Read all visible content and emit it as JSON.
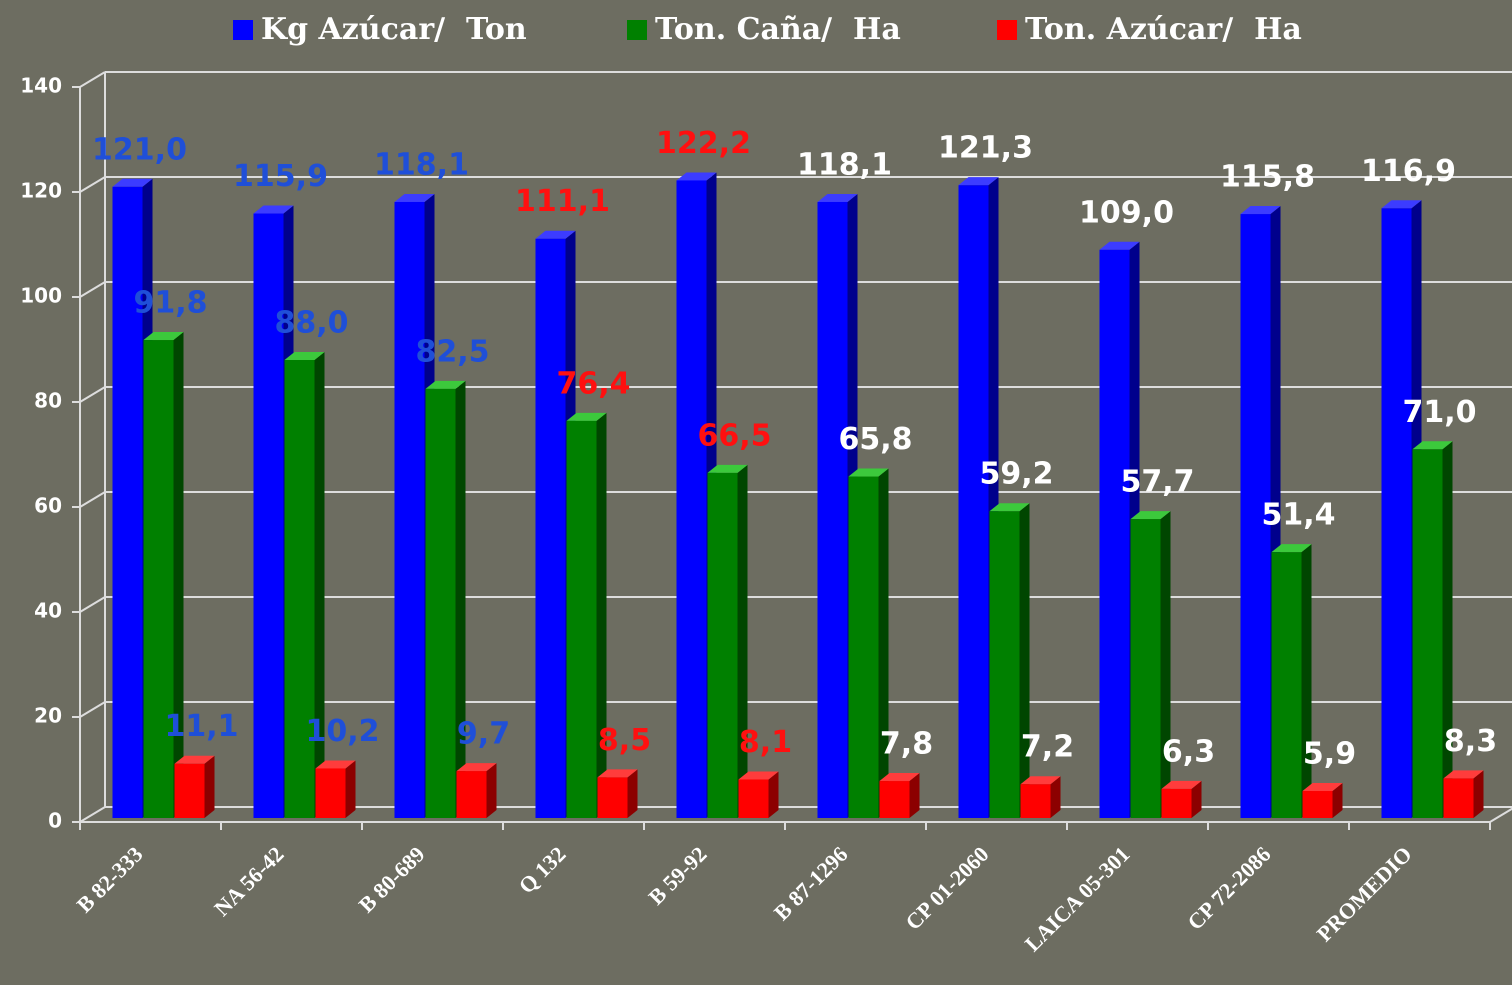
{
  "chart_data": {
    "type": "bar3d",
    "categories": [
      "B 82-333",
      "NA 56-42",
      "B 80-689",
      "Q 132",
      "B 59-92",
      "B 87-1296",
      "CP 01-2060",
      "LAICA 05-301",
      "CP 72-2086",
      "PROMEDIO"
    ],
    "series": [
      {
        "name": "Kg Azúcar/  Ton",
        "color": "#0000ff",
        "values": [
          121.0,
          115.9,
          118.1,
          111.1,
          122.2,
          118.1,
          121.3,
          109.0,
          115.8,
          116.9
        ],
        "value_labels": [
          "121,0",
          "115,9",
          "118,1",
          "111,1",
          "122,2",
          "118,1",
          "121,3",
          "109,0",
          "115,8",
          "116,9"
        ],
        "label_colors": [
          "#1f4fd8",
          "#1f4fd8",
          "#1f4fd8",
          "#ff1010",
          "#ff1010",
          "#ffffff",
          "#ffffff",
          "#ffffff",
          "#ffffff",
          "#ffffff"
        ]
      },
      {
        "name": "Ton. Caña/  Ha",
        "color": "#008000",
        "values": [
          91.8,
          88.0,
          82.5,
          76.4,
          66.5,
          65.8,
          59.2,
          57.7,
          51.4,
          71.0
        ],
        "value_labels": [
          "91,8",
          "88,0",
          "82,5",
          "76,4",
          "66,5",
          "65,8",
          "59,2",
          "57,7",
          "51,4",
          "71,0"
        ],
        "label_colors": [
          "#1f4fd8",
          "#1f4fd8",
          "#1f4fd8",
          "#ff1010",
          "#ff1010",
          "#ffffff",
          "#ffffff",
          "#ffffff",
          "#ffffff",
          "#ffffff"
        ]
      },
      {
        "name": "Ton. Azúcar/  Ha",
        "color": "#ff0000",
        "values": [
          11.1,
          10.2,
          9.7,
          8.5,
          8.1,
          7.8,
          7.2,
          6.3,
          5.9,
          8.3
        ],
        "value_labels": [
          "11,1",
          "10,2",
          "9,7",
          "8,5",
          "8,1",
          "7,8",
          "7,2",
          "6,3",
          "5,9",
          "8,3"
        ],
        "label_colors": [
          "#1f4fd8",
          "#1f4fd8",
          "#1f4fd8",
          "#ff1010",
          "#ff1010",
          "#ffffff",
          "#ffffff",
          "#ffffff",
          "#ffffff",
          "#ffffff"
        ]
      }
    ],
    "ylim": [
      0,
      140
    ],
    "yticks": [
      0,
      20,
      40,
      60,
      80,
      100,
      120,
      140
    ],
    "grid": true,
    "legend": "top"
  }
}
